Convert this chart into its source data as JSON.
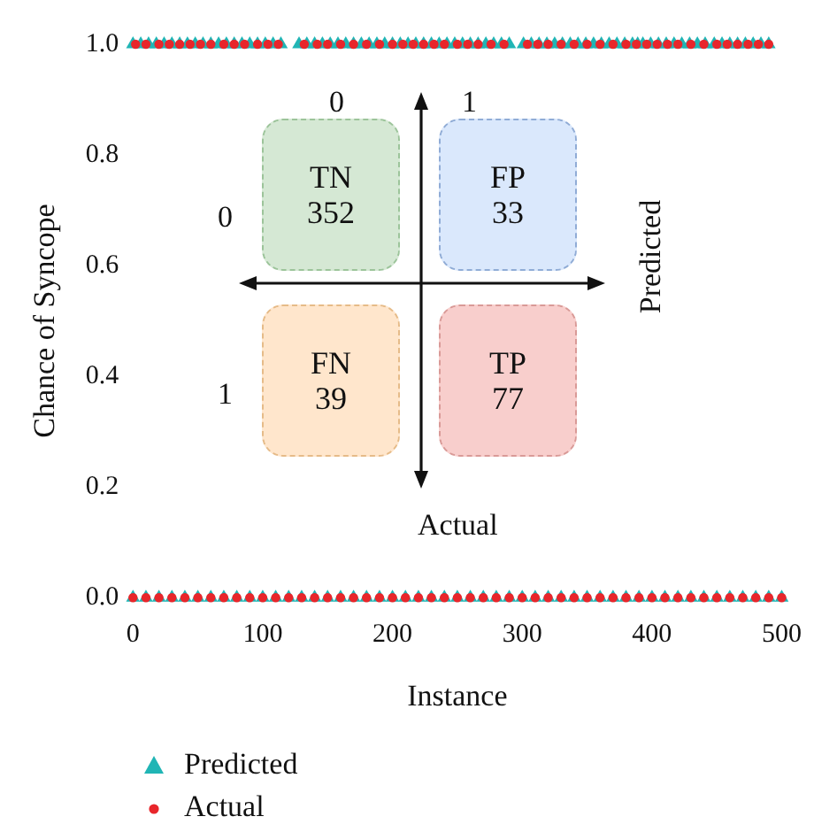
{
  "chart_data": {
    "type": "scatter",
    "xlabel": "Instance",
    "ylabel": "Chance of Syncope",
    "xlim": [
      0,
      500
    ],
    "ylim": [
      0,
      1
    ],
    "xticks": [
      0,
      100,
      200,
      300,
      400,
      500
    ],
    "yticks": [
      {
        "value": 0,
        "label": "0.0"
      },
      {
        "value": 0.2,
        "label": "0.2"
      },
      {
        "value": 0.4,
        "label": "0.4"
      },
      {
        "value": 0.6,
        "label": "0.6"
      },
      {
        "value": 0.8,
        "label": "0.8"
      },
      {
        "value": 1,
        "label": "1.0"
      }
    ],
    "grid": false,
    "legend": "bottom left",
    "annotations": [
      "0",
      "1",
      "0",
      "1",
      "TN\n352",
      "FP\n33",
      "FN\n39",
      "TP\n77",
      "Predicted",
      "Actual"
    ],
    "series": [
      {
        "name": "Predicted",
        "color": "#20b5b5",
        "marker": "triangle",
        "x": [
          0,
          6,
          12,
          18,
          24,
          30,
          36,
          42,
          48,
          54,
          60,
          66,
          72,
          78,
          84,
          90,
          96,
          102,
          108,
          114,
          128,
          134,
          140,
          146,
          152,
          158,
          164,
          170,
          176,
          182,
          188,
          194,
          200,
          206,
          212,
          218,
          224,
          230,
          236,
          242,
          248,
          254,
          260,
          266,
          272,
          278,
          284,
          290,
          301,
          307,
          313,
          319,
          325,
          331,
          337,
          343,
          349,
          355,
          361,
          367,
          373,
          379,
          385,
          389,
          393,
          399,
          405,
          411,
          417,
          423,
          429,
          435,
          441,
          448,
          454,
          460,
          466,
          472,
          478,
          484,
          490,
          0,
          10,
          20,
          30,
          40,
          50,
          60,
          70,
          80,
          90,
          100,
          110,
          120,
          130,
          140,
          150,
          160,
          170,
          180,
          190,
          200,
          210,
          220,
          230,
          240,
          250,
          260,
          270,
          280,
          290,
          300,
          310,
          320,
          330,
          340,
          350,
          360,
          370,
          380,
          390,
          400,
          410,
          420,
          430,
          440,
          450,
          460,
          470,
          480,
          490,
          500
        ],
        "values": [
          1,
          1,
          1,
          1,
          1,
          1,
          1,
          1,
          1,
          1,
          1,
          1,
          1,
          1,
          1,
          1,
          1,
          1,
          1,
          1,
          1,
          1,
          1,
          1,
          1,
          1,
          1,
          1,
          1,
          1,
          1,
          1,
          1,
          1,
          1,
          1,
          1,
          1,
          1,
          1,
          1,
          1,
          1,
          1,
          1,
          1,
          1,
          1,
          1,
          1,
          1,
          1,
          1,
          1,
          1,
          1,
          1,
          1,
          1,
          1,
          1,
          1,
          1,
          1,
          1,
          1,
          1,
          1,
          1,
          1,
          1,
          1,
          1,
          1,
          1,
          1,
          1,
          1,
          1,
          1,
          1,
          0,
          0,
          0,
          0,
          0,
          0,
          0,
          0,
          0,
          0,
          0,
          0,
          0,
          0,
          0,
          0,
          0,
          0,
          0,
          0,
          0,
          0,
          0,
          0,
          0,
          0,
          0,
          0,
          0,
          0,
          0,
          0,
          0,
          0,
          0,
          0,
          0,
          0,
          0,
          0,
          0,
          0,
          0,
          0,
          0,
          0,
          0,
          0,
          0,
          0,
          0
        ]
      },
      {
        "name": "Actual",
        "color": "#e8262b",
        "marker": "circle",
        "x": [
          2,
          10,
          20,
          28,
          36,
          44,
          52,
          60,
          70,
          78,
          86,
          96,
          104,
          112,
          132,
          142,
          150,
          160,
          170,
          180,
          190,
          200,
          208,
          216,
          224,
          232,
          240,
          250,
          258,
          266,
          276,
          286,
          304,
          312,
          320,
          330,
          340,
          350,
          360,
          370,
          380,
          388,
          396,
          404,
          412,
          420,
          430,
          440,
          450,
          458,
          466,
          474,
          482,
          490,
          0,
          10,
          20,
          30,
          40,
          50,
          60,
          70,
          80,
          90,
          100,
          110,
          120,
          130,
          140,
          150,
          160,
          170,
          180,
          190,
          200,
          210,
          220,
          230,
          240,
          250,
          260,
          270,
          280,
          290,
          300,
          310,
          320,
          330,
          340,
          350,
          360,
          370,
          380,
          390,
          400,
          410,
          420,
          430,
          440,
          450,
          460,
          470,
          480,
          490,
          500
        ],
        "values": [
          1,
          1,
          1,
          1,
          1,
          1,
          1,
          1,
          1,
          1,
          1,
          1,
          1,
          1,
          1,
          1,
          1,
          1,
          1,
          1,
          1,
          1,
          1,
          1,
          1,
          1,
          1,
          1,
          1,
          1,
          1,
          1,
          1,
          1,
          1,
          1,
          1,
          1,
          1,
          1,
          1,
          1,
          1,
          1,
          1,
          1,
          1,
          1,
          1,
          1,
          1,
          1,
          1,
          1,
          0,
          0,
          0,
          0,
          0,
          0,
          0,
          0,
          0,
          0,
          0,
          0,
          0,
          0,
          0,
          0,
          0,
          0,
          0,
          0,
          0,
          0,
          0,
          0,
          0,
          0,
          0,
          0,
          0,
          0,
          0,
          0,
          0,
          0,
          0,
          0,
          0,
          0,
          0,
          0,
          0,
          0,
          0,
          0,
          0,
          0,
          0,
          0,
          0,
          0,
          0
        ]
      }
    ]
  }
}
